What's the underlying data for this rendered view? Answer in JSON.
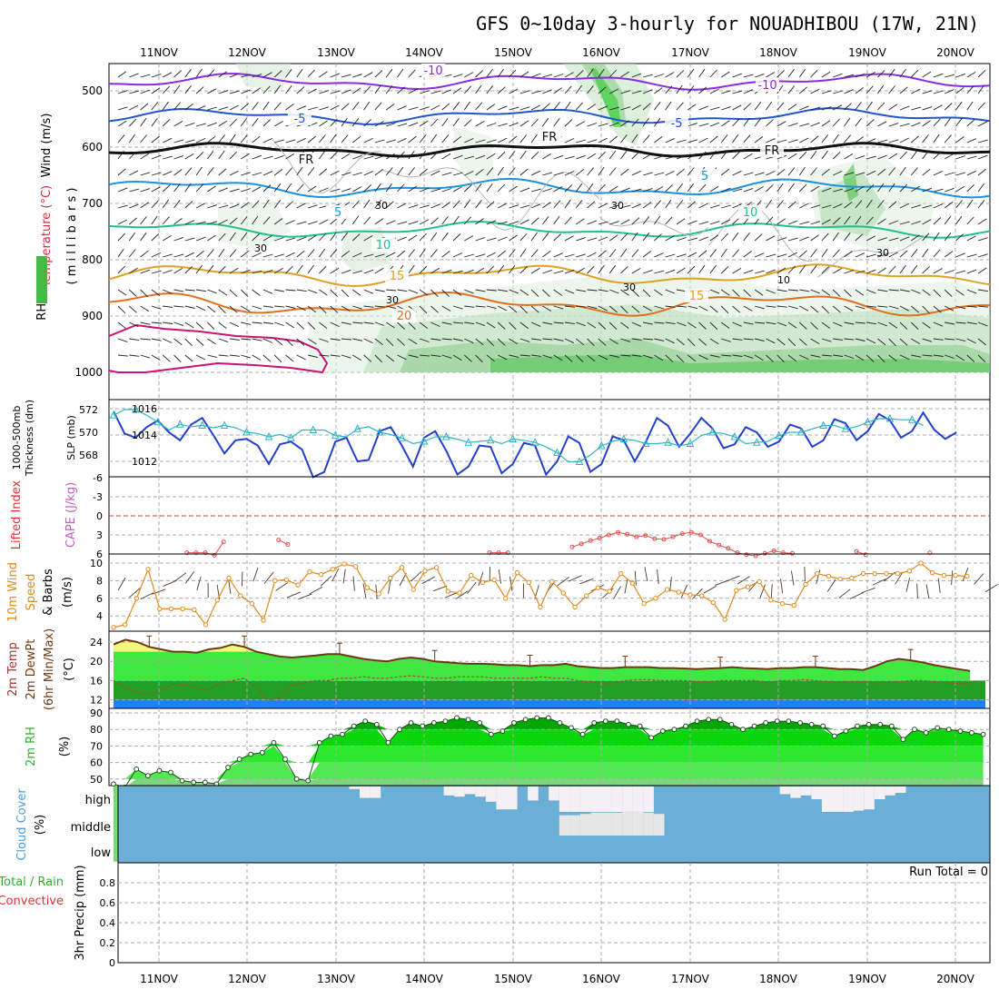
{
  "title": "GFS 0~10day 3-hourly for NOUADHIBOU (17W, 21N)",
  "dates": [
    "11NOV",
    "12NOV",
    "13NOV",
    "14NOV",
    "15NOV",
    "16NOV",
    "17NOV",
    "18NOV",
    "19NOV",
    "20NOV"
  ],
  "run_total": "Run Total = 0",
  "colors": {
    "grid": "#a9a9a9",
    "green": "#33cc33",
    "rh_green": "#66dd66",
    "cloud_blue": "#6baed6",
    "temp_yellow": "#f5f57a"
  },
  "panels": {
    "upper": {
      "y_label_a": "Wind (m/s)",
      "y_label_b": "Temperature (°C)",
      "y_label_c": "RH (%)",
      "y_label_d": "( m i l l i b a r s )",
      "ticks": [
        "500",
        "600",
        "700",
        "800",
        "900",
        "1000"
      ],
      "contour_labels": [
        "-10",
        "-10",
        "-5",
        "-5",
        "FR",
        "FR",
        "FR",
        "5",
        "5",
        "10",
        "10",
        "15",
        "15",
        "20",
        "30",
        "30",
        "30",
        "30",
        "30",
        "10",
        "30"
      ]
    },
    "thickness": {
      "y_label_a": "1000-500mb",
      "y_label_b": "Thickness (dm)",
      "y_label_c": "SLP (mb)",
      "left_ticks": [
        "572",
        "570",
        "568"
      ],
      "right_ticks": [
        "1016",
        "1014",
        "1012"
      ]
    },
    "lifted": {
      "y_label_a": "Lifted Index",
      "y_label_b": "CAPE (J/kg)",
      "ticks": [
        "-6",
        "-3",
        "0",
        "3",
        "6"
      ]
    },
    "wind10": {
      "y_label_a": "10m Wind",
      "y_label_b": "Speed",
      "y_label_c": "& Barbs",
      "y_label_d": "(m/s)",
      "ticks": [
        "10",
        "8",
        "6",
        "4"
      ]
    },
    "temp2m": {
      "y_label_a": "2m Temp",
      "y_label_b": "2m DewPt",
      "y_label_c": "(6hr Min/Max)",
      "y_label_d": "(°C)",
      "ticks": [
        "24",
        "20",
        "16",
        "12"
      ]
    },
    "rh2m": {
      "y_label_a": "2m RH",
      "y_label_b": "(%)",
      "ticks": [
        "90",
        "80",
        "70",
        "60",
        "50"
      ]
    },
    "cloud": {
      "y_label_a": "Cloud Cover",
      "y_label_b": "(%)",
      "levels": [
        "high",
        "middle",
        "low"
      ]
    },
    "precip": {
      "y_label_a": "Total / Rain",
      "y_label_b": "Convective",
      "y_label_c": "3hr Precip (mm)",
      "ticks": [
        "0.8",
        "0.6",
        "0.4",
        "0.2",
        "0"
      ]
    }
  },
  "chart_data": {
    "type": "line",
    "x_unit": "forecast step (3-hourly, 0 = 11NOV 00Z)",
    "slp_mb": [
      1015.8,
      1014.1,
      1013.8,
      1014.6,
      1015.1,
      1014.2,
      1013.6,
      1014.8,
      1015.3,
      1014.0,
      1012.6,
      1013.6,
      1013.7,
      1013.2,
      1011.8,
      1013.3,
      1013.5,
      1012.9,
      1010.8,
      1011.2,
      1013.5,
      1013.8,
      1012.0,
      1012.1,
      1014.3,
      1014.6,
      1013.2,
      1011.6,
      1013.8,
      1014.3,
      1012.8,
      1011.0,
      1011.6,
      1013.2,
      1013.1,
      1011.1,
      1011.8,
      1013.4,
      1013.2,
      1011.0,
      1012.0,
      1013.9,
      1013.4,
      1011.2,
      1011.8,
      1013.9,
      1013.6,
      1012.0,
      1013.5,
      1015.3,
      1014.7,
      1013.1,
      1014.1,
      1015.3,
      1014.5,
      1013.0,
      1013.3,
      1014.6,
      1014.2,
      1013.1,
      1013.5,
      1014.8,
      1014.5,
      1013.1,
      1013.6,
      1015.2,
      1014.9,
      1013.6,
      1014.3,
      1015.6,
      1015.1,
      1013.8,
      1014.3,
      1015.7,
      1014.4,
      1013.7,
      1014.2
    ],
    "thickness_dm": [
      571.5,
      572.0,
      572.0,
      571.5,
      570.9,
      570.2,
      570.7,
      570.5,
      570.6,
      570.4,
      570.6,
      570.4,
      570.0,
      569.9,
      569.6,
      569.8,
      569.5,
      570.2,
      570.2,
      570.2,
      569.7,
      569.6,
      570.3,
      570.5,
      570.0,
      569.8,
      569.5,
      569.0,
      569.2,
      569.6,
      569.6,
      569.4,
      569.1,
      569.2,
      569.3,
      569.0,
      569.4,
      569.3,
      569.1,
      568.7,
      568.2,
      567.4,
      567.4,
      568.0,
      568.8,
      569.2,
      569.4,
      569.3,
      569.0,
      569.0,
      569.1,
      568.8,
      569.0,
      569.7,
      570.0,
      569.9,
      569.6,
      569.0,
      569.1,
      569.2,
      569.7,
      570.0,
      570.0,
      570.3,
      570.6,
      570.6,
      570.3,
      570.5,
      570.9,
      571.2,
      571.2,
      571.1,
      571.1,
      570.6
    ],
    "lifted_index": [
      6.5,
      6.5,
      6.5,
      6.5,
      6.5,
      6.5,
      6.5,
      6.5,
      5.8,
      5.8,
      5.8,
      6.2,
      4.1,
      6.5,
      6.5,
      6.5,
      6.5,
      6.5,
      3.8,
      4.5,
      6.4,
      6.5,
      6.5,
      6.5,
      6.5,
      6.5,
      6.5,
      6.5,
      6.5,
      6.5,
      6.5,
      6.5,
      6.5,
      6.5,
      6.5,
      6.5,
      6.5,
      6.5,
      6.5,
      6.5,
      6.5,
      5.8,
      5.8,
      5.8,
      6.5,
      6.5,
      6.5,
      6.5,
      6.5,
      6.5,
      4.9,
      4.4,
      3.9,
      3.5,
      3.0,
      2.6,
      2.9,
      3.3,
      3.1,
      3.6,
      3.7,
      3.3,
      2.8,
      2.6,
      3.0,
      4.0,
      4.6,
      5.1,
      5.8,
      6.1,
      6.3,
      5.9,
      5.5,
      5.8,
      5.9,
      6.4,
      6.5,
      6.5,
      6.5,
      6.5,
      6.5,
      5.6,
      6.1,
      6.5,
      6.5,
      6.5,
      6.5,
      6.5,
      6.5,
      5.8,
      6.5,
      6.5,
      6.5,
      6.5,
      6.5,
      6.5
    ],
    "wind_speed_ms": [
      2.7,
      3.0,
      6.0,
      9.3,
      4.8,
      4.8,
      4.8,
      4.7,
      3.0,
      5.8,
      8.3,
      6.3,
      5.4,
      3.5,
      8.0,
      8.1,
      7.5,
      9.0,
      8.7,
      9.3,
      9.9,
      9.6,
      7.2,
      6.5,
      8.3,
      9.5,
      7.0,
      9.1,
      9.5,
      6.8,
      6.6,
      8.6,
      7.8,
      8.1,
      6.0,
      8.9,
      7.8,
      5.0,
      7.9,
      6.6,
      5.0,
      6.3,
      7.2,
      6.8,
      8.8,
      7.7,
      5.4,
      6.0,
      7.0,
      6.7,
      6.4,
      6.3,
      5.5,
      3.6,
      6.9,
      7.3,
      7.9,
      5.8,
      5.4,
      5.2,
      7.6,
      8.8,
      8.5,
      8.2,
      8.3,
      8.8,
      8.8,
      8.8,
      8.8,
      9.1,
      10.0,
      8.9,
      8.6,
      8.6,
      8.5
    ],
    "temp_2m_c": [
      23.5,
      24.5,
      24.0,
      23.0,
      22.5,
      22.0,
      22.0,
      21.8,
      22.5,
      22.8,
      23.5,
      23.0,
      22.0,
      21.5,
      21.0,
      20.8,
      21.0,
      21.2,
      21.5,
      21.5,
      21.0,
      20.5,
      20.2,
      20.0,
      20.5,
      20.8,
      20.5,
      20.0,
      19.8,
      19.6,
      19.5,
      19.5,
      19.4,
      19.2,
      19.2,
      19.0,
      19.2,
      19.2,
      19.5,
      19.0,
      18.8,
      18.6,
      18.6,
      18.8,
      18.8,
      18.8,
      18.6,
      18.6,
      18.5,
      18.4,
      18.5,
      18.6,
      18.8,
      18.6,
      18.5,
      18.4,
      18.6,
      18.6,
      18.8,
      18.8,
      18.6,
      18.4,
      18.4,
      18.2,
      19.0,
      20.0,
      20.5,
      20.2,
      19.8,
      19.2,
      18.8,
      18.4,
      18.0
    ],
    "dewpt_2m_c": [
      16.0,
      14.5,
      13.5,
      13.0,
      14.0,
      15.2,
      15.0,
      14.5,
      14.0,
      15.5,
      16.0,
      16.5,
      14.5,
      12.0,
      12.5,
      15.0,
      15.5,
      16.0,
      16.0,
      16.5,
      16.5,
      16.8,
      16.5,
      16.5,
      16.8,
      17.0,
      16.8,
      16.5,
      16.5,
      16.8,
      16.8,
      16.8,
      16.5,
      16.5,
      16.5,
      16.5,
      16.8,
      16.5,
      16.5,
      16.0,
      15.8,
      15.5,
      15.5,
      16.0,
      16.2,
      16.2,
      16.0,
      16.0,
      16.0,
      15.8,
      15.8,
      16.0,
      16.0,
      16.0,
      16.0,
      15.5,
      16.0,
      16.0,
      16.2,
      16.0,
      15.8,
      15.6,
      15.8,
      15.8,
      15.5,
      15.6,
      15.8,
      16.0,
      16.0,
      15.8,
      15.5,
      15.4,
      15.4
    ],
    "rh_2m_pct": [
      47,
      45,
      56,
      52,
      55,
      54,
      49,
      48,
      48,
      47,
      57,
      62,
      65,
      66,
      72,
      62,
      50,
      49,
      72,
      76,
      77,
      82,
      85,
      83,
      72,
      80,
      84,
      82,
      84,
      85,
      87,
      86,
      84,
      77,
      79,
      84,
      86,
      87,
      87,
      84,
      81,
      77,
      84,
      85,
      85,
      83,
      82,
      75,
      79,
      80,
      82,
      85,
      86,
      86,
      83,
      80,
      82,
      84,
      85,
      85,
      84,
      83,
      82,
      76,
      79,
      82,
      83,
      83,
      82,
      74,
      80,
      78,
      81,
      80,
      79,
      78,
      77
    ],
    "cloud_high_pct": [
      0,
      0,
      0,
      0,
      0,
      0,
      0,
      0,
      0,
      0,
      0,
      0,
      0,
      0,
      0,
      0,
      0,
      0,
      0,
      0,
      0,
      0,
      10,
      45,
      45,
      0,
      0,
      0,
      0,
      0,
      0,
      35,
      40,
      30,
      40,
      60,
      90,
      90,
      0,
      55,
      0,
      55,
      100,
      100,
      100,
      100,
      100,
      100,
      100,
      100,
      100,
      0,
      0,
      0,
      0,
      0,
      0,
      0,
      0,
      0,
      0,
      0,
      0,
      30,
      45,
      35,
      50,
      100,
      100,
      100,
      95,
      90,
      50,
      35,
      25,
      0,
      0,
      0,
      0,
      0,
      0,
      0,
      0,
      0
    ],
    "cloud_mid_pct": [
      0,
      0,
      0,
      0,
      0,
      0,
      0,
      0,
      0,
      0,
      0,
      0,
      0,
      0,
      0,
      0,
      0,
      0,
      0,
      0,
      0,
      0,
      0,
      0,
      0,
      0,
      0,
      0,
      0,
      0,
      0,
      0,
      0,
      0,
      0,
      0,
      0,
      0,
      0,
      0,
      0,
      0,
      80,
      80,
      85,
      90,
      90,
      90,
      95,
      95,
      90,
      85,
      0,
      0,
      0,
      0,
      0,
      0,
      0,
      0,
      0,
      0,
      0,
      0,
      0,
      0,
      0,
      0,
      0,
      0,
      0,
      0,
      0,
      0,
      0,
      0,
      0,
      0,
      0,
      0,
      0,
      0,
      0,
      0
    ],
    "precip_3hr_mm": 0
  }
}
